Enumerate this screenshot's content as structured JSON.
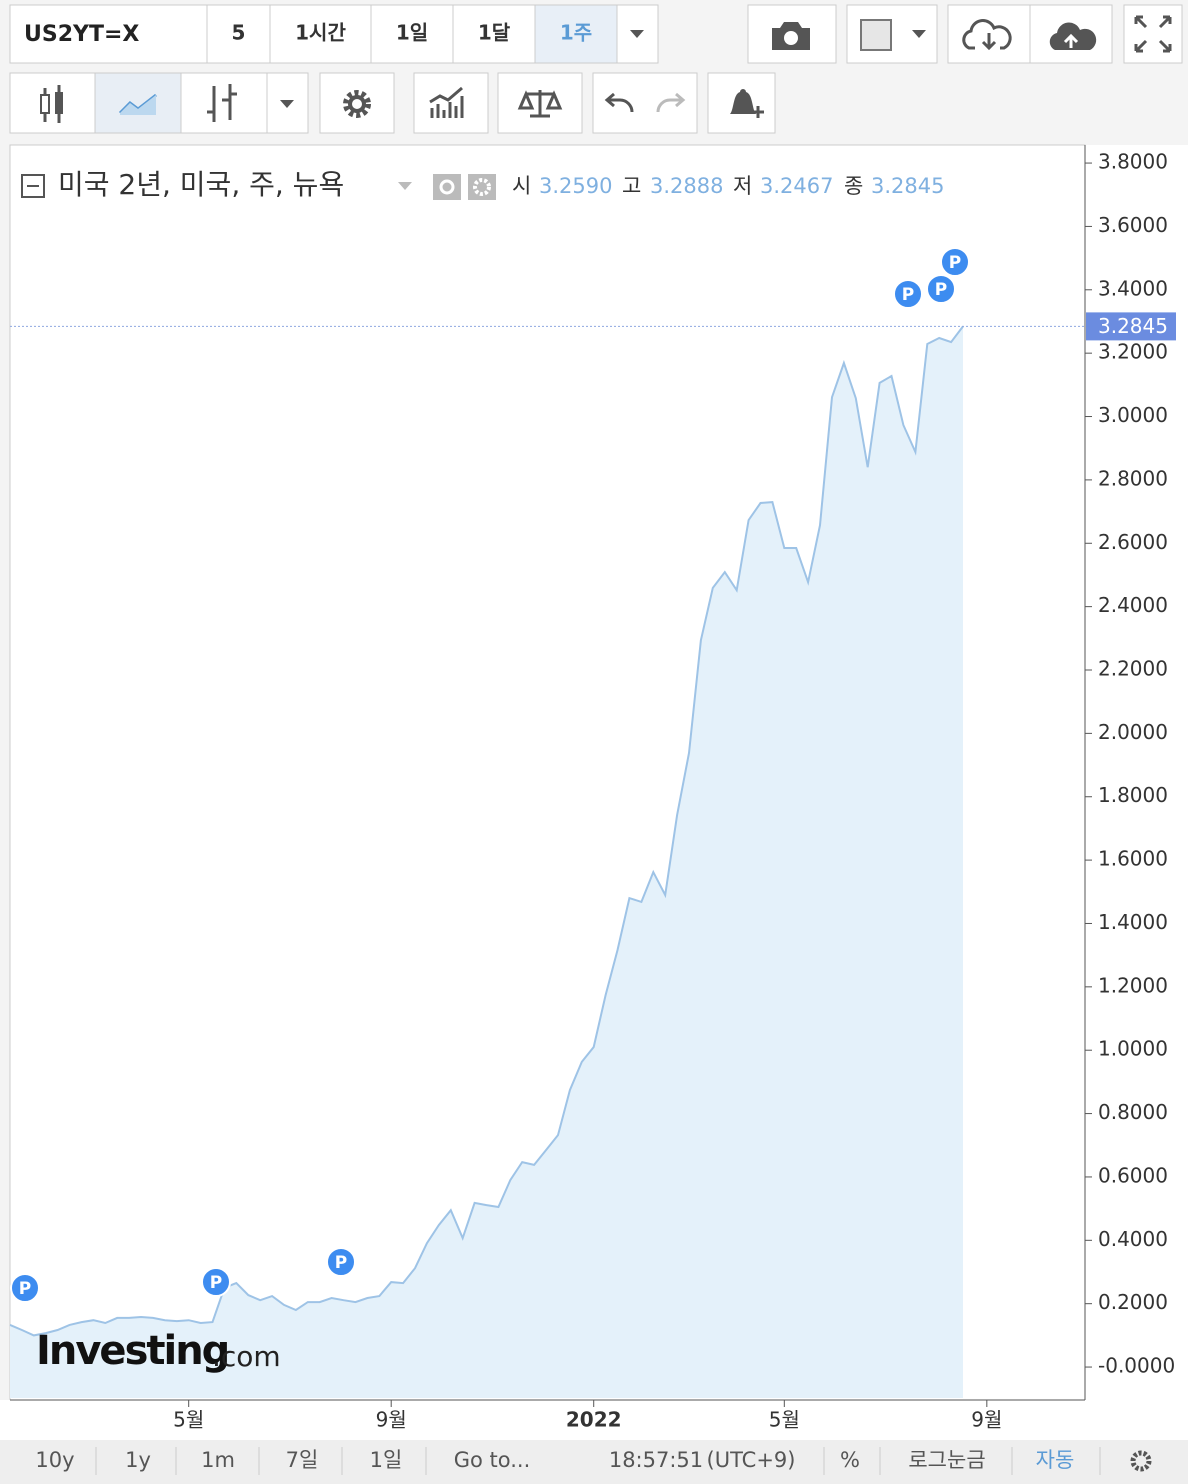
{
  "toolbar": {
    "symbol": "US2YT=X",
    "intervals": [
      "5",
      "1시간",
      "1일",
      "1달",
      "1주"
    ],
    "active_interval": 4
  },
  "chart_data": {
    "type": "area",
    "legend": {
      "title": "미국 2년, 미국, 주, 뉴욕",
      "ohlc": [
        {
          "name": "시",
          "value": 3.259,
          "label": "3.2590"
        },
        {
          "name": "고",
          "value": 3.2888,
          "label": "3.2888"
        },
        {
          "name": "저",
          "value": 3.2467,
          "label": "3.2467"
        },
        {
          "name": "종",
          "value": 3.2845,
          "label": "3.2845"
        }
      ]
    },
    "categories": [
      null,
      null,
      null,
      null,
      null,
      null,
      null,
      null,
      null,
      null,
      null,
      null,
      null,
      null,
      null,
      "5월",
      null,
      null,
      null,
      null,
      null,
      null,
      null,
      null,
      null,
      null,
      null,
      null,
      null,
      null,
      null,
      null,
      "9월",
      null,
      null,
      null,
      null,
      null,
      null,
      null,
      null,
      null,
      null,
      null,
      null,
      null,
      null,
      null,
      null,
      "2022",
      null,
      null,
      null,
      null,
      null,
      null,
      null,
      null,
      null,
      null,
      null,
      null,
      null,
      null,
      null,
      "5월",
      null,
      null,
      null,
      null,
      null,
      null,
      null,
      null,
      null,
      null,
      null,
      null,
      null,
      null,
      null,
      null,
      "9월",
      null,
      null,
      null,
      null,
      null,
      null,
      null,
      null
    ],
    "values": [
      0.133,
      0.117,
      0.1,
      0.107,
      0.117,
      0.133,
      0.142,
      0.148,
      0.139,
      0.155,
      0.155,
      0.158,
      0.155,
      0.148,
      0.145,
      0.148,
      0.139,
      0.142,
      0.25,
      0.265,
      0.227,
      0.211,
      0.224,
      0.196,
      0.18,
      0.205,
      0.205,
      0.218,
      0.211,
      0.205,
      0.218,
      0.224,
      0.268,
      0.265,
      0.312,
      0.391,
      0.448,
      0.495,
      0.407,
      0.518,
      0.511,
      0.505,
      0.59,
      0.647,
      0.638,
      0.685,
      0.732,
      0.874,
      0.963,
      1.01,
      1.174,
      1.316,
      1.48,
      1.468,
      1.562,
      1.49,
      1.742,
      1.938,
      2.294,
      2.459,
      2.509,
      2.452,
      2.673,
      2.727,
      2.73,
      2.585,
      2.585,
      2.477,
      2.657,
      3.061,
      3.169,
      3.058,
      2.84,
      3.106,
      3.128,
      2.973,
      2.888,
      3.229,
      3.248,
      3.235,
      3.2845,
      null,
      null,
      null,
      null,
      null,
      null,
      null,
      null,
      null,
      null
    ],
    "last_price": {
      "value": 3.2845,
      "label": "3.2845"
    },
    "color": "#9ec3e6",
    "fill": "#e4f1fa",
    "ylim": [
      -0.104,
      3.857
    ],
    "yticks": [
      {
        "value": 3.8,
        "label": "3.8000"
      },
      {
        "value": 3.6,
        "label": "3.6000"
      },
      {
        "value": 3.4,
        "label": "3.4000"
      },
      {
        "value": 3.2,
        "label": "3.2000"
      },
      {
        "value": 3.0,
        "label": "3.0000"
      },
      {
        "value": 2.8,
        "label": "2.8000"
      },
      {
        "value": 2.6,
        "label": "2.6000"
      },
      {
        "value": 2.4,
        "label": "2.4000"
      },
      {
        "value": 2.2,
        "label": "2.2000"
      },
      {
        "value": 2.0,
        "label": "2.0000"
      },
      {
        "value": 1.8,
        "label": "1.8000"
      },
      {
        "value": 1.6,
        "label": "1.6000"
      },
      {
        "value": 1.4,
        "label": "1.4000"
      },
      {
        "value": 1.2,
        "label": "1.2000"
      },
      {
        "value": 1.0,
        "label": "1.0000"
      },
      {
        "value": 0.8,
        "label": "0.8000"
      },
      {
        "value": 0.6,
        "label": "0.6000"
      },
      {
        "value": 0.4,
        "label": "0.4000"
      },
      {
        "value": 0.2,
        "label": "0.2000"
      },
      {
        "value": 0,
        "label": "-0.0000"
      }
    ],
    "grid": false,
    "events": [
      "P",
      "P",
      "P",
      "P",
      "P",
      "P"
    ],
    "logo": {
      "name": "Investing",
      "suffix": ".com"
    }
  },
  "footer": {
    "ranges": [
      "10y",
      "1y",
      "1m",
      "7일",
      "1일"
    ],
    "goto": "Go to...",
    "time": "18:57:51",
    "timezone": "(UTC+9)",
    "percent": "%",
    "log": "로그눈금",
    "auto": "자동"
  }
}
